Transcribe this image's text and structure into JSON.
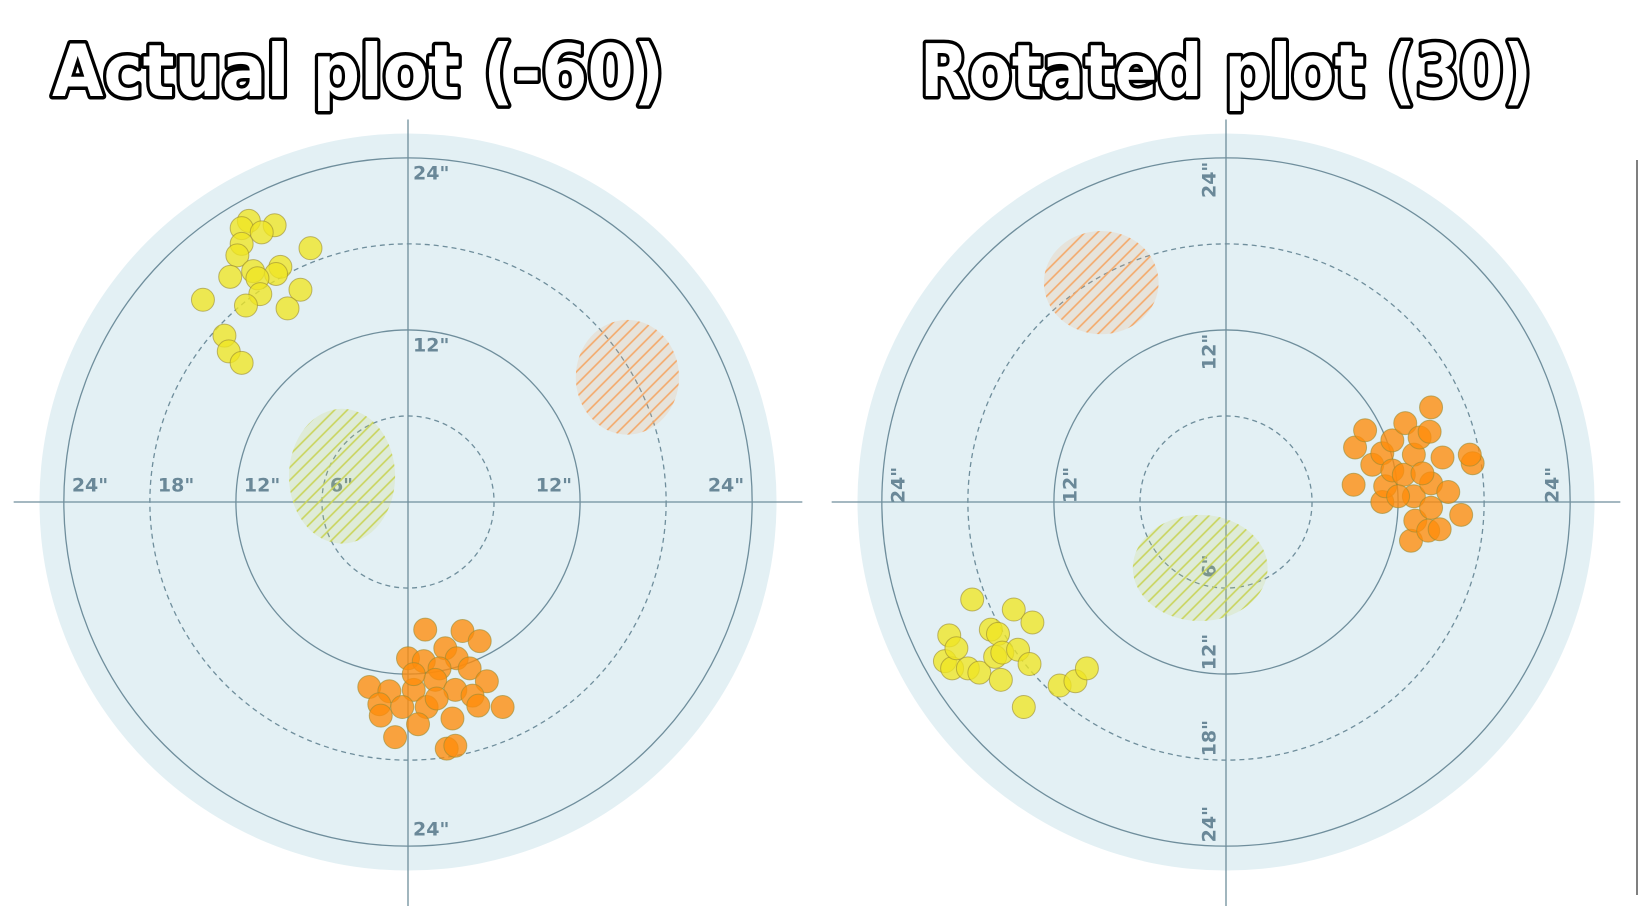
{
  "chart_data": [
    {
      "type": "scatter",
      "polar": true,
      "title": "Actual plot (-60)",
      "label_rotation": 0,
      "rlim": [
        0,
        25.7
      ],
      "rticks": [
        6,
        12,
        18,
        24
      ],
      "xticks": [
        {
          "value": -24,
          "label": "24\""
        },
        {
          "value": -18,
          "label": "18\""
        },
        {
          "value": -12,
          "label": "12\""
        },
        {
          "value": -6,
          "label": "6\""
        },
        {
          "value": 12,
          "label": "12\""
        },
        {
          "value": 24,
          "label": "24\""
        }
      ],
      "yticks": [
        {
          "value": 24,
          "label": "24\""
        },
        {
          "value": 12,
          "label": "12\""
        },
        {
          "value": -24,
          "label": "24\""
        }
      ],
      "zones": [
        {
          "color": "#c9d45a",
          "x": -4.6,
          "y": 1.8,
          "rx": 3.7,
          "ry": 4.7
        },
        {
          "color": "#f4a868",
          "x": 15.3,
          "y": 8.7,
          "rx": 3.6,
          "ry": 4.0
        }
      ],
      "series": [
        {
          "color": "#efe623",
          "x": [
            -11.1,
            -9.3,
            -11.6,
            -10.2,
            -11.6,
            -6.8,
            -11.9,
            -8.9,
            -10.8,
            -12.4,
            -9.2,
            -10.5,
            -7.5,
            -10.3,
            -11.3,
            -14.3,
            -8.4,
            -12.8,
            -12.5,
            -11.6
          ],
          "y": [
            19.6,
            19.3,
            19.1,
            18.8,
            18.0,
            17.7,
            17.2,
            16.4,
            16.1,
            15.7,
            15.9,
            15.6,
            14.8,
            14.5,
            13.7,
            14.1,
            13.5,
            11.6,
            10.5,
            9.7
          ]
        },
        {
          "color": "#ff8c0a",
          "x": [
            1.2,
            3.8,
            5.0,
            2.6,
            0,
            1.1,
            3.4,
            4.3,
            2.2,
            5.5,
            -2.7,
            -1.3,
            0.4,
            1.9,
            3.3,
            4.5,
            -2.0,
            -0.4,
            1.3,
            3.1,
            4.9,
            6.6,
            -1.9,
            0.7,
            -0.9,
            2.7,
            3.3,
            2.0,
            0.4
          ],
          "y": [
            -8.9,
            -9.0,
            -9.7,
            -10.2,
            -10.9,
            -11.1,
            -10.9,
            -11.6,
            -11.6,
            -12.5,
            -12.9,
            -13.2,
            -13.1,
            -12.4,
            -13.1,
            -13.5,
            -14.1,
            -14.3,
            -14.3,
            -15.1,
            -14.2,
            -14.3,
            -14.9,
            -15.5,
            -16.4,
            -17.2,
            -17.0,
            -13.7,
            -12.0
          ]
        }
      ]
    },
    {
      "type": "scatter",
      "polar": true,
      "title": "Rotated plot (30)",
      "label_rotation": -90,
      "rlim": [
        0,
        25.7
      ],
      "rticks": [
        6,
        12,
        18,
        24
      ],
      "xticks": [
        {
          "value": -24,
          "label": "24\""
        },
        {
          "value": -12,
          "label": "12\""
        },
        {
          "value": 24,
          "label": "24\""
        }
      ],
      "yticks": [
        {
          "value": 24,
          "label": "24\""
        },
        {
          "value": 12,
          "label": "12\""
        },
        {
          "value": -6,
          "label": "6\""
        },
        {
          "value": -12,
          "label": "12\""
        },
        {
          "value": -18,
          "label": "18\""
        },
        {
          "value": -24,
          "label": "24\""
        }
      ],
      "zones": [
        {
          "color": "#c9d45a",
          "x": -1.8,
          "y": -4.6,
          "rx": 4.7,
          "ry": 3.7
        },
        {
          "color": "#f4a868",
          "x": -8.7,
          "y": 15.3,
          "rx": 4.0,
          "ry": 3.6
        }
      ],
      "series": [
        {
          "color": "#efe623",
          "x": [
            -19.6,
            -19.3,
            -19.1,
            -18.8,
            -18.0,
            -17.7,
            -17.2,
            -16.4,
            -16.1,
            -15.7,
            -15.9,
            -15.6,
            -14.8,
            -14.5,
            -13.7,
            -14.1,
            -13.5,
            -11.6,
            -10.5,
            -9.7
          ],
          "y": [
            -11.1,
            -9.3,
            -11.6,
            -10.2,
            -11.6,
            -6.8,
            -11.9,
            -8.9,
            -10.8,
            -12.4,
            -9.2,
            -10.5,
            -7.5,
            -10.3,
            -11.3,
            -14.3,
            -8.4,
            -12.8,
            -12.5,
            -11.6
          ]
        },
        {
          "color": "#ff8c0a",
          "x": [
            8.9,
            9.0,
            9.7,
            10.2,
            10.9,
            11.1,
            10.9,
            11.6,
            11.6,
            12.5,
            12.9,
            13.2,
            13.1,
            12.4,
            13.1,
            13.5,
            14.1,
            14.3,
            14.3,
            15.1,
            14.2,
            14.3,
            14.9,
            15.5,
            16.4,
            17.2,
            17.0,
            13.7,
            12.0
          ],
          "y": [
            1.2,
            3.8,
            5.0,
            2.6,
            0,
            1.1,
            3.4,
            4.3,
            2.2,
            5.5,
            -2.7,
            -1.3,
            0.4,
            1.9,
            3.3,
            4.5,
            -2.0,
            -0.4,
            1.3,
            3.1,
            4.9,
            6.6,
            -1.9,
            0.7,
            -0.9,
            2.7,
            3.3,
            2.0,
            0.4
          ]
        }
      ]
    }
  ]
}
